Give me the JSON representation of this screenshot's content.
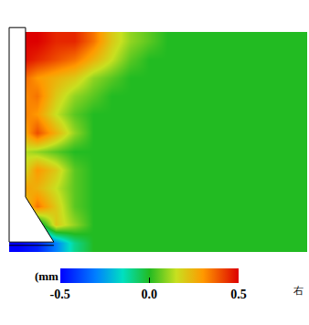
{
  "chart_data": {
    "type": "heatmap",
    "tick_labels": false,
    "cells": [
      [
        0.5,
        0.5,
        0.45,
        0.45,
        0.35,
        0.2,
        0.1,
        0.05,
        0,
        0,
        0,
        0,
        0,
        0,
        0,
        0
      ],
      [
        0.5,
        0.45,
        0.4,
        0.35,
        0.25,
        0.15,
        0.05,
        0,
        0,
        0,
        0,
        0,
        0,
        0,
        0,
        0
      ],
      [
        0.4,
        0.3,
        0.25,
        0.2,
        0.1,
        0.05,
        0,
        0,
        0,
        0,
        0,
        0,
        0,
        0,
        0,
        0
      ],
      [
        0.3,
        0.35,
        0.2,
        0.1,
        0.05,
        0,
        0,
        0,
        0,
        0,
        0,
        0,
        0,
        0,
        0,
        0
      ],
      [
        0.35,
        0.3,
        0.15,
        0.05,
        0,
        0,
        0,
        0,
        0,
        0,
        0,
        0,
        0,
        0,
        0,
        0
      ],
      [
        0.2,
        0.4,
        0.25,
        0.1,
        0,
        0,
        0,
        0,
        0,
        0,
        0,
        0,
        0,
        0,
        0,
        0
      ],
      [
        0.15,
        0.1,
        0.05,
        0,
        0,
        0,
        0,
        0,
        0,
        0,
        0,
        0,
        0,
        0,
        0,
        0
      ],
      [
        0.1,
        0.3,
        0.2,
        0.05,
        0,
        0,
        0,
        0,
        0,
        0,
        0,
        0,
        0,
        0,
        0,
        0
      ],
      [
        0.3,
        0.25,
        0.15,
        0.05,
        0,
        0,
        0,
        0,
        0,
        0,
        0,
        0,
        0,
        0,
        0,
        0
      ],
      [
        0.1,
        0.35,
        0.2,
        0.05,
        0,
        0,
        0,
        0,
        0,
        0,
        0,
        0,
        0,
        0,
        0,
        0
      ],
      [
        -0.2,
        -0.1,
        0.2,
        0.1,
        0,
        0,
        0,
        0,
        0,
        0,
        0,
        0,
        0,
        0,
        0,
        0
      ],
      [
        -0.5,
        -0.45,
        -0.3,
        -0.1,
        0,
        0,
        0,
        0,
        0,
        0,
        0,
        0,
        0,
        0,
        0,
        0
      ]
    ],
    "colorbar": {
      "range": [
        -0.5,
        0.5
      ],
      "ticks": [
        -0.5,
        {
          "value": 0,
          "label": "0.0"
        },
        0.5
      ],
      "title": "(mm"
    },
    "annotations": [
      "右"
    ]
  }
}
